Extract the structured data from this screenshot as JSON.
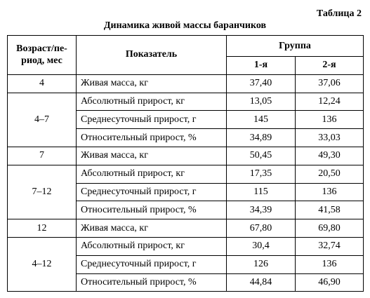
{
  "caption": "Таблица 2",
  "title": "Динамика живой массы баранчиков",
  "header": {
    "period": "Возраст/пе-риод, мес",
    "indicator": "Показатель",
    "group": "Группа",
    "subgroups": [
      "1-я",
      "2-я"
    ]
  },
  "groups": [
    {
      "period": "4",
      "rows": [
        {
          "indicator": "Живая масса, кг",
          "values": [
            "37,40",
            "37,06"
          ]
        }
      ]
    },
    {
      "period": "4–7",
      "rows": [
        {
          "indicator": "Абсолютный прирост, кг",
          "values": [
            "13,05",
            "12,24"
          ]
        },
        {
          "indicator": "Среднесуточный прирост, г",
          "values": [
            "145",
            "136"
          ]
        },
        {
          "indicator": "Относительный прирост, %",
          "values": [
            "34,89",
            "33,03"
          ]
        }
      ]
    },
    {
      "period": "7",
      "rows": [
        {
          "indicator": "Живая масса, кг",
          "values": [
            "50,45",
            "49,30"
          ]
        }
      ]
    },
    {
      "period": "7–12",
      "rows": [
        {
          "indicator": "Абсолютный прирост, кг",
          "values": [
            "17,35",
            "20,50"
          ]
        },
        {
          "indicator": "Среднесуточный прирост, г",
          "values": [
            "115",
            "136"
          ]
        },
        {
          "indicator": "Относительный прирост, %",
          "values": [
            "34,39",
            "41,58"
          ]
        }
      ]
    },
    {
      "period": "12",
      "rows": [
        {
          "indicator": "Живая масса, кг",
          "values": [
            "67,80",
            "69,80"
          ]
        }
      ]
    },
    {
      "period": "4–12",
      "rows": [
        {
          "indicator": "Абсолютный прирост, кг",
          "values": [
            "30,4",
            "32,74"
          ]
        },
        {
          "indicator": "Среднесуточный прирост, г",
          "values": [
            "126",
            "136"
          ]
        },
        {
          "indicator": "Относительный прирост, %",
          "values": [
            "44,84",
            "46,90"
          ]
        }
      ]
    }
  ]
}
